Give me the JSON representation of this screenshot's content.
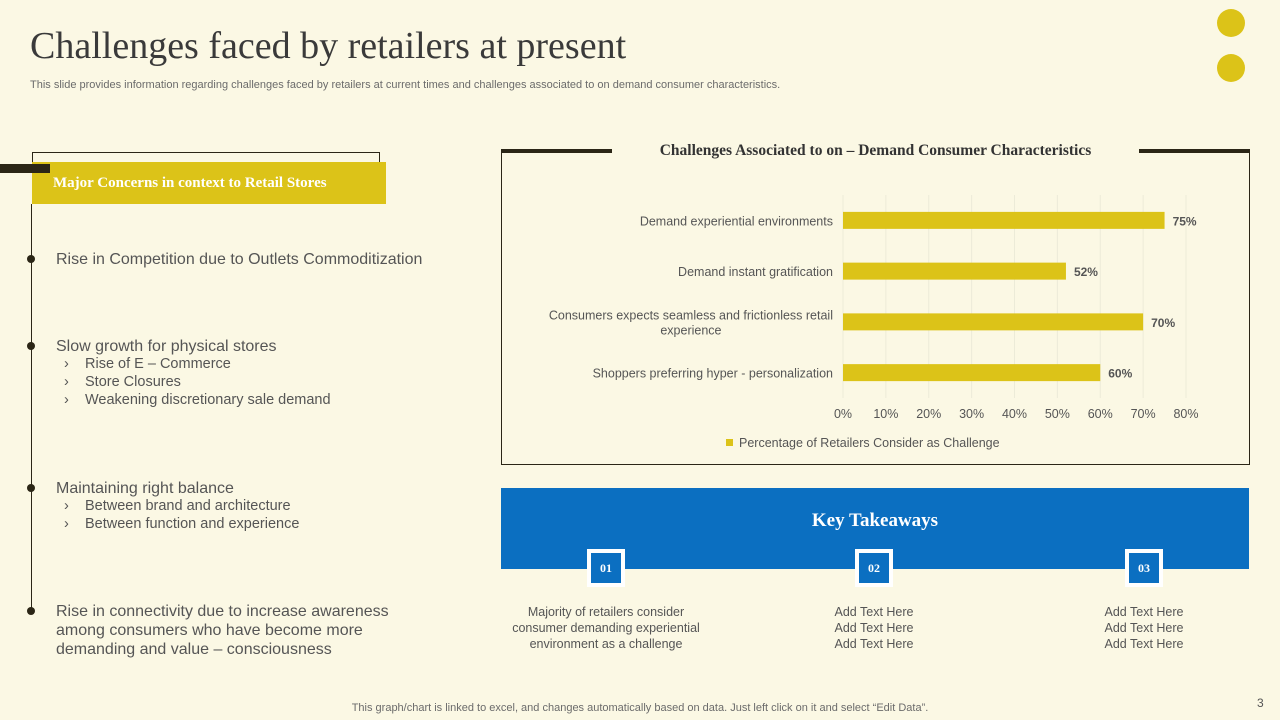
{
  "header": {
    "title": "Challenges faced by retailers at present",
    "subtitle": "This slide provides information regarding challenges faced by retailers at current times and challenges associated to on demand consumer characteristics."
  },
  "concerns": {
    "banner": "Major Concerns in context to Retail Stores",
    "items": [
      {
        "heading": "Rise in Competition due to Outlets  Commoditization",
        "subitems": []
      },
      {
        "heading": "Slow growth for physical stores",
        "subitems": [
          "Rise of E – Commerce",
          "Store Closures",
          "Weakening discretionary sale demand"
        ]
      },
      {
        "heading": "Maintaining right balance",
        "subitems": [
          "Between brand and architecture",
          "Between function and experience"
        ]
      },
      {
        "heading": "Rise in connectivity  due to increase awareness among consumers who have become more demanding and value  – consciousness",
        "subitems": []
      }
    ],
    "chevron": "›"
  },
  "chart_data": {
    "type": "bar",
    "orientation": "horizontal",
    "title": "Challenges Associated to on – Demand Consumer Characteristics",
    "categories": [
      "Demand experiential environments",
      "Demand instant gratification",
      "Consumers expects seamless and frictionless retail experience",
      "Shoppers preferring hyper - personalization"
    ],
    "category_lines": [
      [
        "Demand experiential environments"
      ],
      [
        "Demand instant gratification"
      ],
      [
        "Consumers expects seamless and frictionless retail",
        "experience"
      ],
      [
        "Shoppers preferring hyper - personalization"
      ]
    ],
    "series": [
      {
        "name": "Percentage of Retailers Consider as Challenge",
        "values": [
          75,
          52,
          70,
          60
        ]
      }
    ],
    "data_labels": [
      "75%",
      "52%",
      "70%",
      "60%"
    ],
    "xlim": [
      0,
      80
    ],
    "xticks": [
      0,
      10,
      20,
      30,
      40,
      50,
      60,
      70,
      80
    ],
    "tick_suffix": "%",
    "grid": true,
    "legend_position": "bottom",
    "bar_color": "#dcc318"
  },
  "takeaways": {
    "title": "Key Takeaways",
    "items": [
      {
        "number": "01",
        "lines": [
          "Majority of retailers consider",
          "consumer demanding experiential",
          "environment  as a challenge"
        ]
      },
      {
        "number": "02",
        "lines": [
          "Add Text Here",
          "Add Text Here",
          "Add Text Here"
        ]
      },
      {
        "number": "03",
        "lines": [
          "Add Text Here",
          "Add Text Here",
          "Add Text Here"
        ]
      }
    ]
  },
  "footer": {
    "note": "This graph/chart is linked to excel,  and changes automatically based on data. Just left click on it and select “Edit Data”.",
    "page": "3"
  },
  "colors": {
    "background": "#fbf8e4",
    "accent_yellow": "#dcc318",
    "accent_blue": "#0b6fc1",
    "dark": "#2b2616"
  }
}
